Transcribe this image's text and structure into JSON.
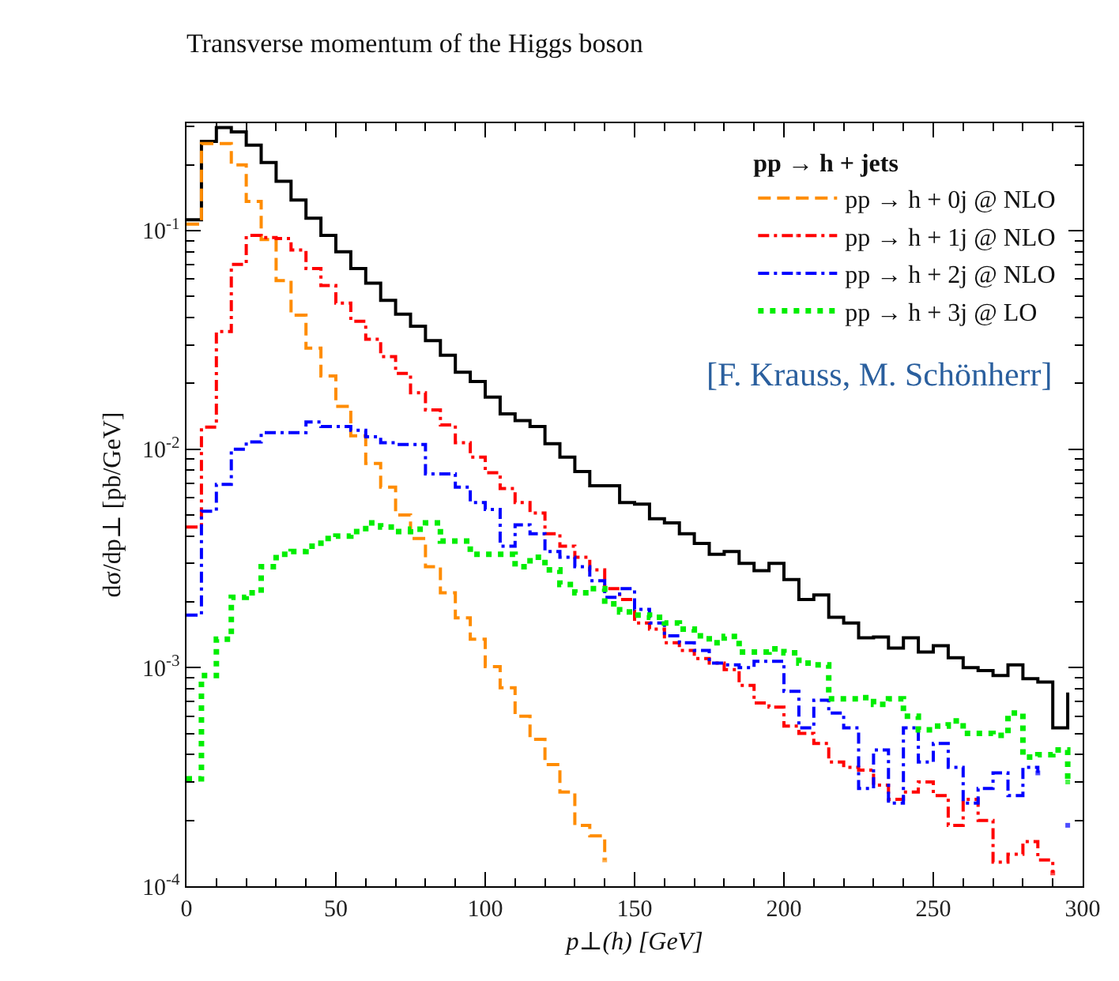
{
  "chart_data": {
    "type": "step",
    "title": "Transverse momentum of the Higgs boson",
    "xlabel": "p⊥(h) [GeV]",
    "ylabel": "dσ/dp⊥ [pb/GeV]",
    "legend_title": "pp → h + jets",
    "annotations": [
      "[F. Krauss, M. Schönherr]"
    ],
    "x": [
      0,
      5,
      10,
      15,
      20,
      25,
      30,
      35,
      40,
      45,
      50,
      55,
      60,
      65,
      70,
      75,
      80,
      85,
      90,
      95,
      100,
      105,
      110,
      115,
      120,
      125,
      130,
      135,
      140,
      145,
      150,
      155,
      160,
      165,
      170,
      175,
      180,
      185,
      190,
      195,
      200,
      205,
      210,
      215,
      220,
      225,
      230,
      235,
      240,
      245,
      250,
      255,
      260,
      265,
      270,
      275,
      280,
      285,
      290,
      295
    ],
    "series": [
      {
        "color": "#000000",
        "line_style": "solid",
        "values": [
          0.112,
          0.256,
          0.296,
          0.283,
          0.246,
          0.205,
          0.168,
          0.138,
          0.114,
          0.095,
          0.08,
          0.067,
          0.0575,
          0.048,
          0.0415,
          0.0365,
          0.0314,
          0.0269,
          0.0225,
          0.0204,
          0.0173,
          0.0145,
          0.0135,
          0.0127,
          0.0106,
          0.0092,
          0.0079,
          0.0068,
          0.0068,
          0.0057,
          0.0056,
          0.0048,
          0.0046,
          0.0041,
          0.0037,
          0.0033,
          0.0034,
          0.003,
          0.00278,
          0.003,
          0.00253,
          0.00205,
          0.00215,
          0.0017,
          0.0016,
          0.00137,
          0.00138,
          0.00123,
          0.00137,
          0.00118,
          0.00126,
          0.00111,
          0.001,
          0.00097,
          0.00092,
          0.00103,
          0.00089,
          0.00086,
          0.00053,
          0.00077
        ]
      },
      {
        "name": "pp → h + 0j @ NLO",
        "color": "#ff8c00",
        "line_style": "dashed",
        "values": [
          0.107,
          0.25,
          0.25,
          0.2,
          0.136,
          0.091,
          0.059,
          0.041,
          0.029,
          0.0216,
          0.0157,
          0.0115,
          0.0086,
          0.0067,
          0.005,
          0.0039,
          0.0029,
          0.0022,
          0.00169,
          0.00135,
          0.00101,
          0.00081,
          0.0006,
          0.00047,
          0.00036,
          0.00027,
          0.00019,
          0.00017,
          0.000132,
          null,
          null,
          null,
          null,
          null,
          null,
          null,
          null,
          null,
          null,
          null,
          null,
          null,
          null,
          null,
          null,
          null,
          null,
          null,
          null,
          null,
          null,
          null,
          null,
          null,
          null,
          null,
          null,
          null,
          null,
          null
        ]
      },
      {
        "name": "pp → h + 1j @ NLO",
        "color": "#ff0000",
        "line_style": "dashdot",
        "values": [
          0.0044,
          0.0126,
          0.0345,
          0.07,
          0.095,
          0.093,
          0.092,
          0.0815,
          0.067,
          0.056,
          0.0466,
          0.0385,
          0.0318,
          0.0265,
          0.0222,
          0.0181,
          0.0151,
          0.0129,
          0.0107,
          0.0092,
          0.0078,
          0.0066,
          0.0057,
          0.0051,
          0.0041,
          0.0036,
          0.0032,
          0.0028,
          0.0023,
          0.00205,
          0.0016,
          0.0015,
          0.0013,
          0.0012,
          0.0011,
          0.00105,
          0.00098,
          0.00083,
          0.00069,
          0.00066,
          0.00054,
          0.0005,
          0.00045,
          0.00037,
          0.00035,
          0.00034,
          0.00029,
          0.00025,
          0.00027,
          0.0003,
          0.00026,
          0.00019,
          0.00025,
          0.0002,
          0.000129,
          0.00014,
          0.00016,
          0.000132,
          0.000115,
          null
        ]
      },
      {
        "name": "pp → h + 2j @ NLO",
        "color": "#0000ff",
        "line_style": "dashdot",
        "values": [
          0.00174,
          0.0052,
          0.0069,
          0.01,
          0.0108,
          0.0119,
          0.0119,
          0.0119,
          0.0133,
          0.0127,
          0.0127,
          0.0122,
          0.0114,
          0.0107,
          0.0105,
          0.0105,
          0.0077,
          0.0077,
          0.0067,
          0.0057,
          0.0053,
          0.0036,
          0.0045,
          0.0041,
          0.0034,
          0.0032,
          0.0029,
          0.0025,
          0.0021,
          0.0023,
          0.00185,
          0.0016,
          0.0014,
          0.0013,
          0.0012,
          0.00105,
          0.00103,
          0.001,
          0.00107,
          0.00107,
          0.00078,
          0.00053,
          0.00071,
          0.00062,
          0.00053,
          0.00028,
          0.00042,
          0.00024,
          0.00053,
          0.00037,
          0.00045,
          0.00035,
          0.00024,
          0.00028,
          0.00033,
          0.00026,
          0.00035,
          0.00033,
          null,
          0.00019
        ]
      },
      {
        "name": "pp → h + 3j @ LO",
        "color": "#00ee00",
        "line_style": "dotted",
        "values": [
          0.00031,
          0.00092,
          0.00135,
          0.0021,
          0.0022,
          0.0029,
          0.0033,
          0.0034,
          0.0036,
          0.0039,
          0.004,
          0.0042,
          0.0046,
          0.0044,
          0.0042,
          0.0043,
          0.0046,
          0.0038,
          0.0038,
          0.0033,
          0.0033,
          0.0033,
          0.0029,
          0.0032,
          0.0028,
          0.0024,
          0.0022,
          0.0023,
          0.00196,
          0.0018,
          0.00174,
          0.0017,
          0.0016,
          0.0015,
          0.0014,
          0.0013,
          0.00139,
          0.00118,
          0.00118,
          0.00122,
          0.00117,
          0.00105,
          0.00103,
          0.00072,
          0.00072,
          0.00073,
          0.00068,
          0.00072,
          0.0006,
          0.00052,
          0.00054,
          0.00057,
          0.0005,
          0.0005,
          0.00049,
          0.00062,
          0.00039,
          0.0004,
          0.00042,
          0.0003
        ]
      }
    ],
    "log": "y",
    "xlim": [
      0,
      300
    ],
    "xticks": [
      0,
      50,
      100,
      150,
      200,
      250,
      300
    ],
    "ylim": [
      0.0001,
      0.31
    ],
    "yticks": [
      {
        "value": 0.0001,
        "label": "10$^{-4}$"
      },
      {
        "value": 0.001,
        "label": "10$^{-3}$"
      },
      {
        "value": 0.01,
        "label": "10$^{-2}$"
      },
      {
        "value": 0.1,
        "label": "10$^{-1}$"
      }
    ],
    "grid": false,
    "legend": "top right",
    "marker": "none"
  }
}
